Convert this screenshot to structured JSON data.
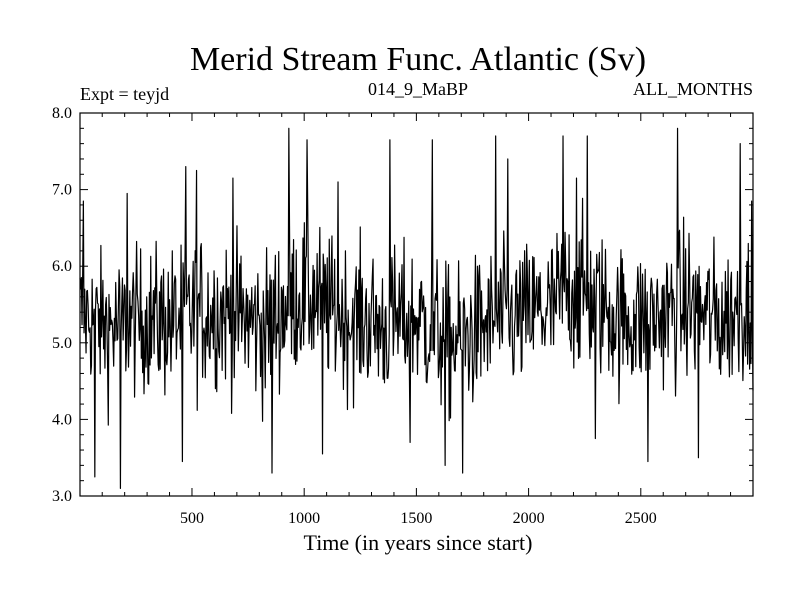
{
  "chart_data": {
    "type": "line",
    "title": "Merid Stream Func. Atlantic (Sv)",
    "subtitle_left": "Expt = teyjd",
    "subtitle_center": "014_9_MaBP",
    "subtitle_right": "ALL_MONTHS",
    "xlabel": "Time (in years since start)",
    "ylabel": "",
    "xlim": [
      1,
      3000
    ],
    "ylim": [
      3.0,
      8.0
    ],
    "xticks": [
      500,
      1000,
      1500,
      2000,
      2500
    ],
    "xtick_labels": [
      "500",
      "1000",
      "1500",
      "2000",
      "2500"
    ],
    "yticks": [
      3.0,
      4.0,
      5.0,
      6.0,
      7.0,
      8.0
    ],
    "ytick_labels": [
      "3.0",
      "4.0",
      "5.0",
      "6.0",
      "7.0",
      "8.0"
    ],
    "grid": false,
    "line_color": "#000000",
    "series": [
      {
        "x": [
          1,
          76,
          151,
          226,
          301,
          376,
          451,
          526,
          601,
          676,
          751,
          826,
          901,
          976,
          1051,
          1126,
          1201,
          1276,
          1351,
          1426,
          1501,
          1576,
          1651,
          1726,
          1801,
          1876,
          1951,
          2026,
          2101,
          2176,
          2251,
          2326,
          2401,
          2476,
          2551,
          2626,
          2701,
          2776,
          2851,
          2926,
          3000
        ],
        "values": [
          5.4,
          5.3,
          5.2,
          5.3,
          5.3,
          5.3,
          5.3,
          5.4,
          5.4,
          5.4,
          5.3,
          5.2,
          5.4,
          5.6,
          5.6,
          5.4,
          5.3,
          5.3,
          5.2,
          5.3,
          5.3,
          5.2,
          5.0,
          5.1,
          5.2,
          5.3,
          5.3,
          5.4,
          5.4,
          5.7,
          5.6,
          5.5,
          5.3,
          5.3,
          5.3,
          5.4,
          5.5,
          5.4,
          5.3,
          5.4,
          5.5
        ],
        "min_envelope": [
          4.2,
          4.0,
          3.8,
          4.0,
          4.0,
          3.9,
          4.0,
          4.0,
          4.1,
          4.0,
          3.9,
          3.7,
          4.1,
          4.3,
          4.2,
          4.1,
          4.0,
          4.0,
          3.9,
          3.9,
          4.0,
          3.8,
          3.6,
          3.7,
          3.9,
          4.0,
          4.0,
          4.1,
          4.1,
          4.3,
          4.2,
          4.2,
          4.0,
          4.0,
          4.0,
          4.1,
          4.1,
          4.1,
          4.0,
          4.1,
          4.2
        ],
        "max_envelope": [
          6.6,
          6.5,
          6.4,
          6.5,
          6.6,
          6.6,
          6.6,
          6.8,
          6.8,
          6.7,
          6.6,
          6.5,
          6.9,
          7.0,
          6.9,
          6.7,
          6.6,
          6.6,
          6.5,
          6.6,
          6.6,
          6.5,
          6.3,
          6.4,
          6.5,
          6.6,
          6.6,
          6.7,
          6.8,
          7.1,
          7.0,
          6.8,
          6.6,
          6.6,
          6.6,
          6.7,
          6.9,
          6.7,
          6.6,
          6.7,
          6.8
        ],
        "extremes": [
          {
            "x": 15,
            "y": 6.85
          },
          {
            "x": 65,
            "y": 3.25
          },
          {
            "x": 180,
            "y": 3.1
          },
          {
            "x": 210,
            "y": 6.95
          },
          {
            "x": 455,
            "y": 3.45
          },
          {
            "x": 470,
            "y": 7.3
          },
          {
            "x": 520,
            "y": 7.25
          },
          {
            "x": 680,
            "y": 7.15
          },
          {
            "x": 855,
            "y": 3.3
          },
          {
            "x": 930,
            "y": 7.8
          },
          {
            "x": 1010,
            "y": 7.65
          },
          {
            "x": 1080,
            "y": 3.55
          },
          {
            "x": 1150,
            "y": 7.1
          },
          {
            "x": 1380,
            "y": 7.65
          },
          {
            "x": 1470,
            "y": 3.7
          },
          {
            "x": 1570,
            "y": 7.65
          },
          {
            "x": 1625,
            "y": 3.4
          },
          {
            "x": 1705,
            "y": 3.3
          },
          {
            "x": 1850,
            "y": 7.7
          },
          {
            "x": 1905,
            "y": 7.4
          },
          {
            "x": 2150,
            "y": 7.7
          },
          {
            "x": 2210,
            "y": 7.15
          },
          {
            "x": 2260,
            "y": 7.7
          },
          {
            "x": 2295,
            "y": 3.75
          },
          {
            "x": 2530,
            "y": 3.45
          },
          {
            "x": 2660,
            "y": 7.8
          },
          {
            "x": 2755,
            "y": 3.5
          },
          {
            "x": 2940,
            "y": 7.6
          },
          {
            "x": 2990,
            "y": 6.85
          }
        ]
      }
    ]
  }
}
